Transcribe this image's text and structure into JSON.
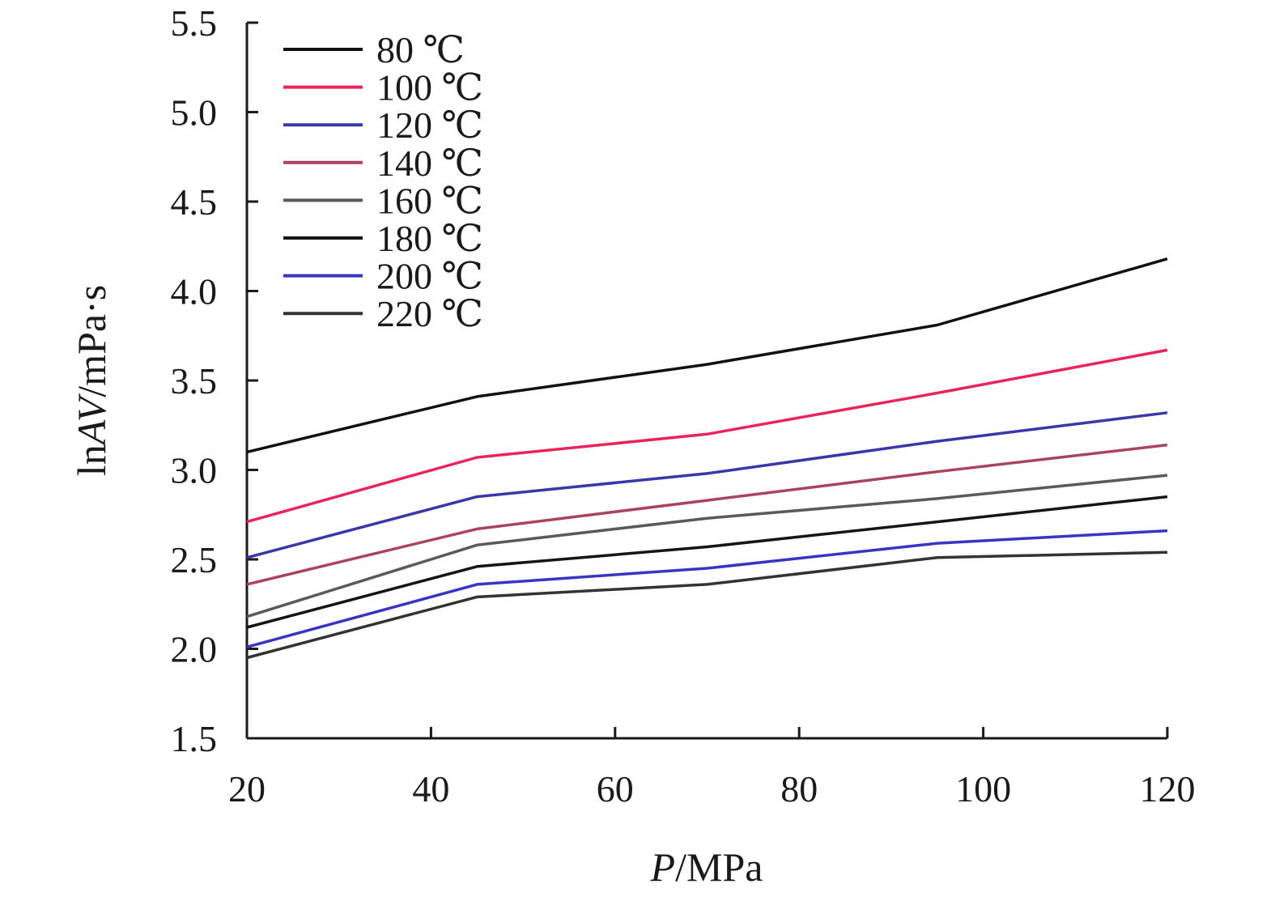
{
  "chart_data": {
    "type": "line",
    "xlabel": {
      "italic": "P",
      "rest": "/MPa"
    },
    "ylabel": {
      "prefix": "ln",
      "italic": "AV",
      "rest": "/mPa·s"
    },
    "xlim": [
      20,
      120
    ],
    "ylim": [
      1.5,
      5.5
    ],
    "x_ticks": [
      20,
      40,
      60,
      80,
      100,
      120
    ],
    "x_tick_labels": [
      "20",
      "40",
      "60",
      "80",
      "100",
      "120"
    ],
    "y_ticks": [
      1.5,
      2.0,
      2.5,
      3.0,
      3.5,
      4.0,
      4.5,
      5.0,
      5.5
    ],
    "y_tick_labels": [
      "1.5",
      "2.0",
      "2.5",
      "3.0",
      "3.5",
      "4.0",
      "4.5",
      "5.0",
      "5.5"
    ],
    "grid": false,
    "legend_position": "top-left",
    "x": [
      20,
      45,
      70,
      95,
      120
    ],
    "series": [
      {
        "name": "80 ℃",
        "color": "#111111",
        "values": [
          3.1,
          3.41,
          3.59,
          3.81,
          4.18
        ]
      },
      {
        "name": "100 ℃",
        "color": "#e8245a",
        "values": [
          2.71,
          3.07,
          3.2,
          3.43,
          3.67
        ]
      },
      {
        "name": "120 ℃",
        "color": "#3a37a8",
        "values": [
          2.51,
          2.85,
          2.98,
          3.16,
          3.32
        ]
      },
      {
        "name": "140 ℃",
        "color": "#a8455c",
        "values": [
          2.36,
          2.67,
          2.83,
          2.99,
          3.14
        ]
      },
      {
        "name": "160 ℃",
        "color": "#5a5a5a",
        "values": [
          2.18,
          2.58,
          2.73,
          2.84,
          2.97
        ]
      },
      {
        "name": "180 ℃",
        "color": "#151515",
        "values": [
          2.12,
          2.46,
          2.57,
          2.71,
          2.85
        ]
      },
      {
        "name": "200 ℃",
        "color": "#3a34c2",
        "values": [
          2.01,
          2.36,
          2.45,
          2.59,
          2.66
        ]
      },
      {
        "name": "220 ℃",
        "color": "#333333",
        "values": [
          1.95,
          2.29,
          2.36,
          2.51,
          2.54
        ]
      }
    ]
  }
}
